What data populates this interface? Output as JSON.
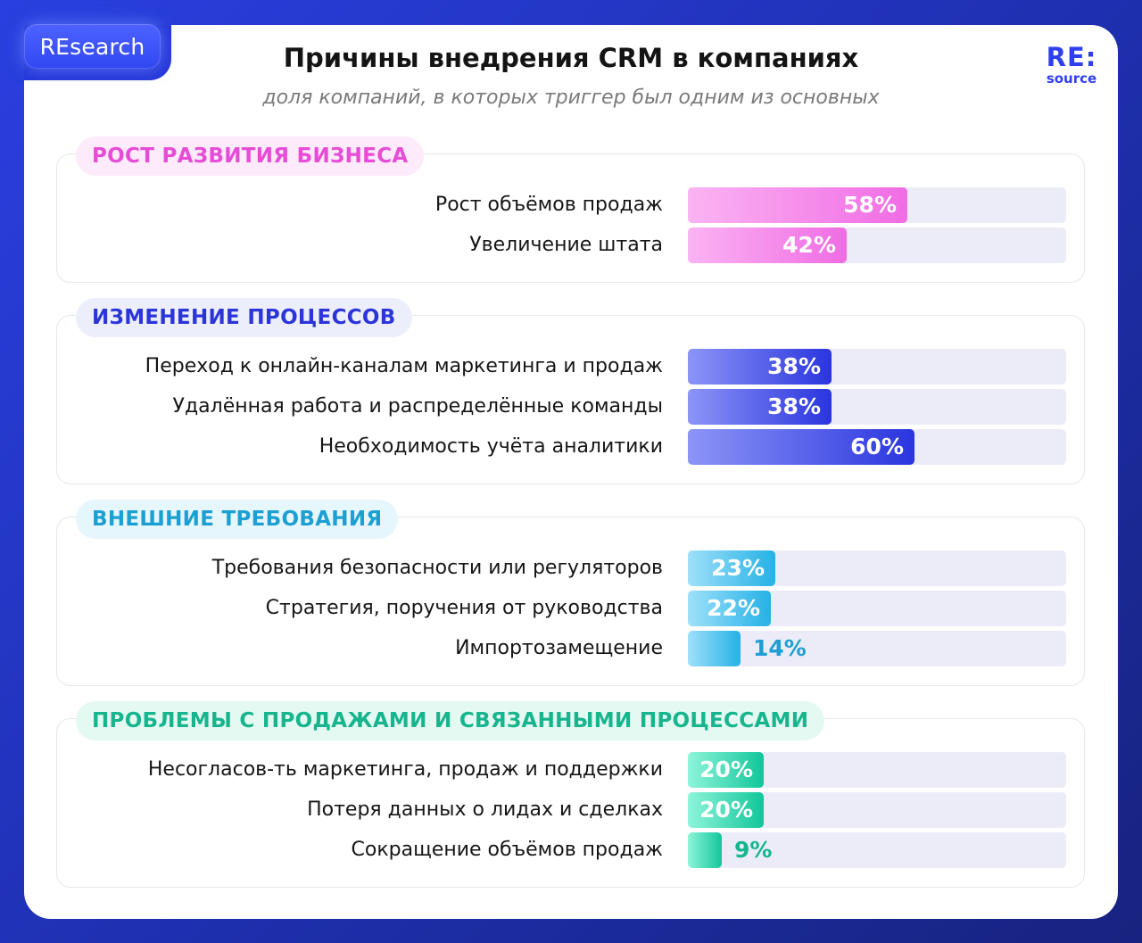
{
  "brand_tab": "REsearch",
  "title": "Причины внедрения CRM в компаниях",
  "subtitle": "доля компаний, в которых триггер был одним из основных",
  "logo": {
    "line1": "RE:",
    "line2": "source"
  },
  "chart_data": {
    "type": "bar",
    "orientation": "horizontal",
    "title": "Причины внедрения CRM в компаниях",
    "subtitle": "доля компаний, в которых триггер был одним из основных",
    "unit": "%",
    "xlim": [
      0,
      100
    ],
    "groups": [
      {
        "name": "РОСТ РАЗВИТИЯ БИЗНЕСА",
        "color": "#e64cd6",
        "pill_bg": "#fdeafb",
        "gradient": [
          "#fbb4f3",
          "#f06ce4"
        ],
        "items": [
          {
            "label": "Рост объёмов продаж",
            "value": 58,
            "display": "58%"
          },
          {
            "label": "Увеличение штата",
            "value": 42,
            "display": "42%"
          }
        ]
      },
      {
        "name": "ИЗМЕНЕНИЕ ПРОЦЕССОВ",
        "color": "#2b35d8",
        "pill_bg": "#eceefc",
        "gradient": [
          "#8c95f7",
          "#2a35de"
        ],
        "items": [
          {
            "label": "Переход к онлайн-каналам маркетинга и продаж",
            "value": 38,
            "display": "38%"
          },
          {
            "label": "Удалённая работа и распределённые команды",
            "value": 38,
            "display": "38%"
          },
          {
            "label": "Необходимость учёта аналитики",
            "value": 60,
            "display": "60%"
          }
        ]
      },
      {
        "name": "ВНЕШНИЕ ТРЕБОВАНИЯ",
        "color": "#1c9fd2",
        "pill_bg": "#e6f6fd",
        "gradient": [
          "#9fe0fa",
          "#25b2e6"
        ],
        "items": [
          {
            "label": "Требования безопасности или регуляторов",
            "value": 23,
            "display": "23%"
          },
          {
            "label": "Стратегия, поручения от руководства",
            "value": 22,
            "display": "22%"
          },
          {
            "label": "Импортозамещение",
            "value": 14,
            "display": "14%"
          }
        ]
      },
      {
        "name": "ПРОБЛЕМЫ С ПРОДАЖАМИ И СВЯЗАННЫМИ ПРОЦЕССАМИ",
        "color": "#17b58d",
        "pill_bg": "#e4f9f2",
        "gradient": [
          "#8ef5da",
          "#12c69a"
        ],
        "items": [
          {
            "label": "Несогласов-ть маркетинга, продаж и поддержки",
            "value": 20,
            "display": "20%"
          },
          {
            "label": "Потеря данных о лидах и сделках",
            "value": 20,
            "display": "20%"
          },
          {
            "label": "Сокращение объёмов продаж",
            "value": 9,
            "display": "9%"
          }
        ]
      }
    ]
  }
}
